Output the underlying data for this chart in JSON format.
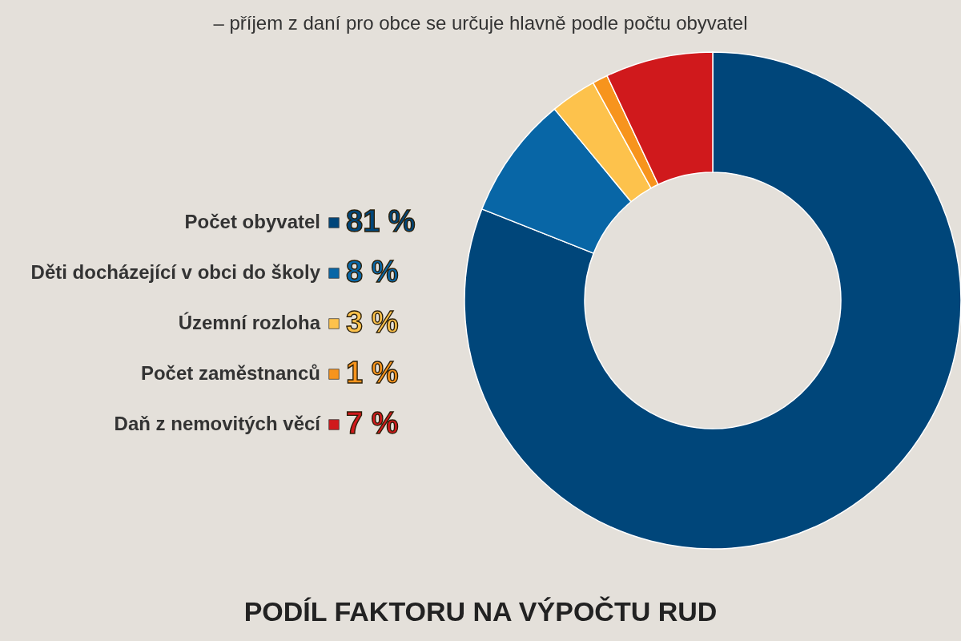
{
  "chart_data": {
    "type": "donut",
    "title": "PODÍL FAKTORU NA VÝPOČTU RUD",
    "subtitle": "– příjem z daní pro obce se určuje hlavně podle počtu obyvatel",
    "categories": [
      "Počet obyvatel",
      "Děti docházející v obci do školy",
      "Územní rozloha",
      "Počet zaměstnanců",
      "Daň z nemovitých věcí"
    ],
    "values": [
      81,
      8,
      3,
      1,
      7
    ],
    "value_labels": [
      "81 %",
      "8 %",
      "3 %",
      "1 %",
      "7 %"
    ],
    "colors": [
      "#00467a",
      "#0866a6",
      "#fdc24c",
      "#f7941d",
      "#d0191c"
    ],
    "legend": "left"
  }
}
